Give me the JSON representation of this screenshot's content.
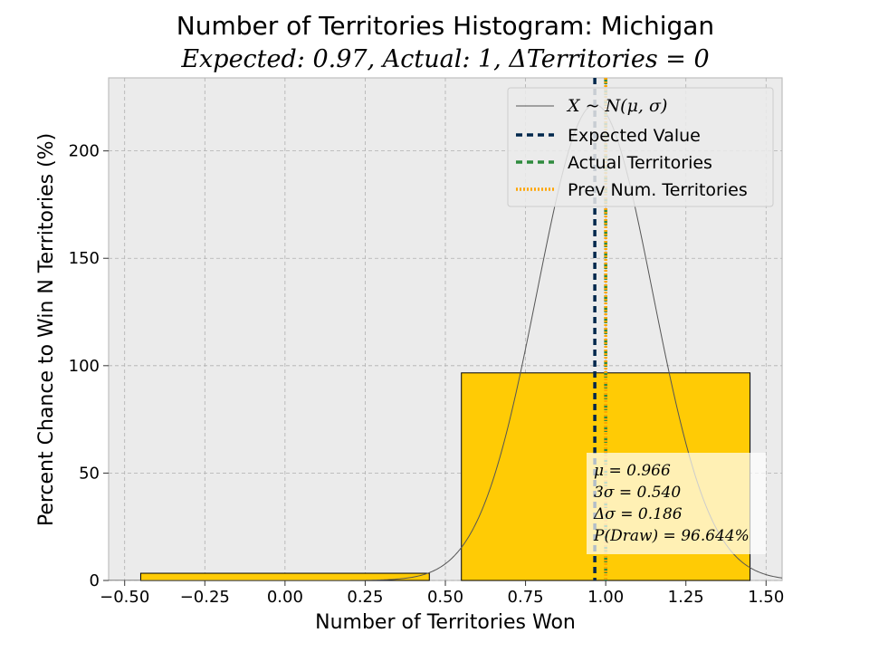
{
  "chart_data": {
    "type": "bar",
    "title": "Number of Territories Histogram: Michigan",
    "subtitle": "Expected: 0.97, Actual: 1, ΔTerritories = 0",
    "xlabel": "Number of Territories Won",
    "ylabel": "Percent Chance to Win N Territories (%)",
    "xlim": [
      -0.55,
      1.55
    ],
    "ylim": [
      0,
      234
    ],
    "x_ticks": [
      -0.5,
      -0.25,
      0.0,
      0.25,
      0.5,
      0.75,
      1.0,
      1.25,
      1.5
    ],
    "x_tick_labels": [
      "−0.50",
      "−0.25",
      "0.00",
      "0.25",
      "0.50",
      "0.75",
      "1.00",
      "1.25",
      "1.50"
    ],
    "y_ticks": [
      0,
      50,
      100,
      150,
      200
    ],
    "y_tick_labels": [
      "0",
      "50",
      "100",
      "150",
      "200"
    ],
    "grid": true,
    "bars": [
      {
        "category": 0,
        "x_start": -0.45,
        "x_end": 0.45,
        "value": 3.356,
        "color": "#FFCB05"
      },
      {
        "category": 1,
        "x_start": 0.55,
        "x_end": 1.45,
        "value": 96.644,
        "color": "#FFCB05"
      }
    ],
    "normal_curve": {
      "mu": 0.966,
      "sigma": 0.18,
      "color": "#555555"
    },
    "vlines": [
      {
        "name": "Expected Value",
        "x": 0.966,
        "color": "#00274C",
        "style": "dashed"
      },
      {
        "name": "Actual Territories",
        "x": 1.0,
        "color": "#2E8B3E",
        "style": "dashed"
      },
      {
        "name": "Prev Num. Territories",
        "x": 1.0,
        "color": "#FFA500",
        "style": "dotted"
      }
    ],
    "legend": {
      "placement": "top-right",
      "curve_label": "X ~ N(μ, σ)",
      "entries": [
        "Expected Value",
        "Actual Territories",
        "Prev Num. Territories"
      ]
    },
    "stats_box": {
      "lines": [
        "μ = 0.966",
        "3σ = 0.540",
        "Δσ = 0.186",
        "P(Draw) = 96.644%"
      ]
    }
  },
  "colors": {
    "plot_background": "#EBEBEB",
    "bar_fill": "#FFCB05",
    "grid": "#B0B0B0",
    "expected_line": "#00274C",
    "actual_line": "#2E8B3E",
    "prev_line": "#FFA500"
  }
}
